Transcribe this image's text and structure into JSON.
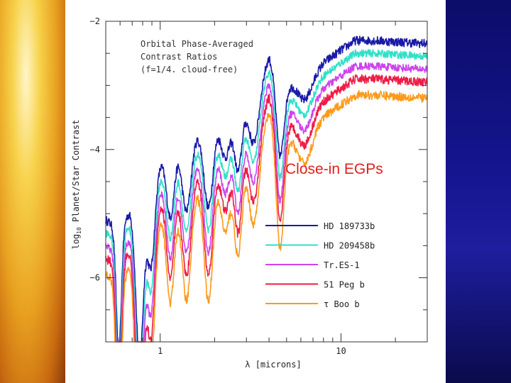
{
  "overlay_label": "Close-in EGPs",
  "chart_data": {
    "type": "line",
    "title": "",
    "annotation_lines": [
      "Orbital Phase-Averaged",
      "Contrast Ratios",
      "(f=1/4. cloud-free)"
    ],
    "xlabel": "λ [microns]",
    "ylabel": "log10 Planet/Star Contrast",
    "ylabel_main": "log",
    "ylabel_sub": "10",
    "ylabel_rest": " Planet/Star Contrast",
    "x_scale": "log",
    "xlim": [
      0.5,
      30
    ],
    "ylim": [
      -7,
      -2
    ],
    "x_ticks": [
      {
        "value": 1,
        "label": "1"
      },
      {
        "value": 10,
        "label": "10"
      }
    ],
    "y_ticks": [
      {
        "value": -2,
        "label": "−2"
      },
      {
        "value": -4,
        "label": "−4"
      },
      {
        "value": -6,
        "label": "−6"
      }
    ],
    "legend_position": "bottom-right",
    "envelope": {
      "x": [
        0.5,
        0.6,
        0.75,
        0.9,
        1.0,
        1.2,
        1.5,
        2.0,
        2.5,
        3.0,
        3.5,
        4.0,
        4.5,
        5.0,
        6.0,
        7.0,
        8.0,
        10.0,
        12.0,
        15.0,
        20.0,
        30.0
      ],
      "y": [
        -5.1,
        -5.25,
        -4.7,
        -4.4,
        -4.2,
        -4.0,
        -3.8,
        -3.6,
        -3.4,
        -3.2,
        -2.95,
        -2.55,
        -2.8,
        -3.0,
        -2.95,
        -2.85,
        -2.65,
        -2.45,
        -2.3,
        -2.3,
        -2.32,
        -2.35
      ]
    },
    "dips": [
      {
        "x": 0.59,
        "depth": 1.9,
        "width": 0.02
      },
      {
        "x": 0.77,
        "depth": 2.6,
        "width": 0.03
      },
      {
        "x": 0.89,
        "depth": 1.4,
        "width": 0.03
      },
      {
        "x": 1.14,
        "depth": 1.0,
        "width": 0.03
      },
      {
        "x": 1.4,
        "depth": 1.1,
        "width": 0.035
      },
      {
        "x": 1.85,
        "depth": 1.25,
        "width": 0.035
      },
      {
        "x": 2.3,
        "depth": 0.65,
        "width": 0.035
      },
      {
        "x": 2.7,
        "depth": 1.0,
        "width": 0.03
      },
      {
        "x": 3.3,
        "depth": 0.85,
        "width": 0.04
      },
      {
        "x": 4.6,
        "depth": 1.25,
        "width": 0.03
      },
      {
        "x": 6.3,
        "depth": 0.3,
        "width": 0.05
      }
    ],
    "series": [
      {
        "name": "HD 189733b",
        "color": "#1a1aa8",
        "offset": 0.0,
        "noise": 0.07
      },
      {
        "name": "HD 209458b",
        "color": "#30e0c8",
        "offset": -0.2,
        "noise": 0.06
      },
      {
        "name": "Tr.ES-1",
        "color": "#cc44ee",
        "offset": -0.4,
        "noise": 0.06
      },
      {
        "name": "51 Peg b",
        "color": "#ee1c46",
        "offset": -0.6,
        "noise": 0.07
      },
      {
        "name": "τ Boo b",
        "color": "#ff9a1a",
        "offset": -0.85,
        "noise": 0.07
      }
    ]
  }
}
